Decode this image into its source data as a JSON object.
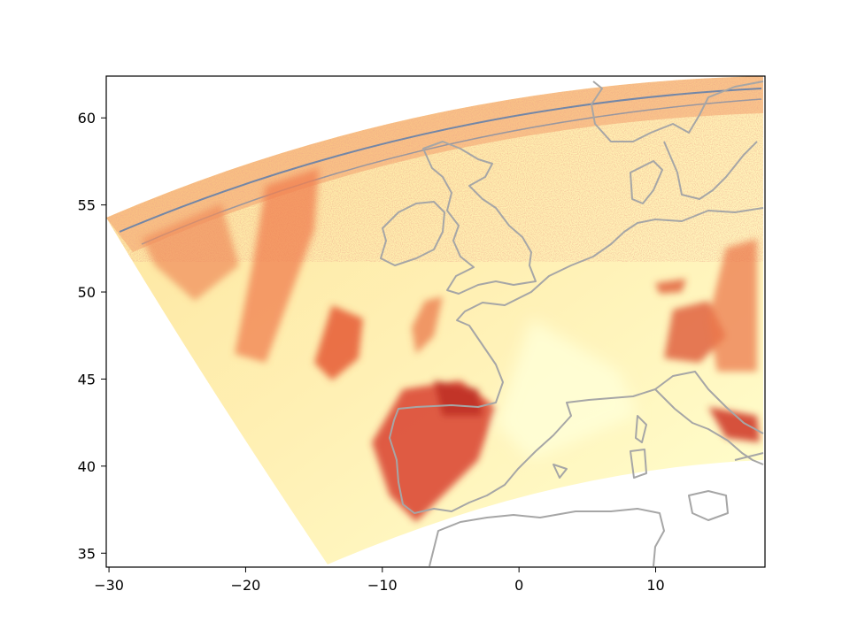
{
  "chart_data": {
    "type": "heatmap",
    "title": "",
    "xlabel": "",
    "ylabel": "",
    "xlim": [
      -30.2,
      18
    ],
    "ylim": [
      34.2,
      62.4
    ],
    "x_ticks": [
      {
        "value": -30,
        "label": "−30"
      },
      {
        "value": -20,
        "label": "−20"
      },
      {
        "value": -10,
        "label": "−10"
      },
      {
        "value": 0,
        "label": "0"
      },
      {
        "value": 10,
        "label": "10"
      }
    ],
    "y_ticks": [
      {
        "value": 35,
        "label": "35"
      },
      {
        "value": 40,
        "label": "40"
      },
      {
        "value": 45,
        "label": "45"
      },
      {
        "value": 50,
        "label": "50"
      },
      {
        "value": 55,
        "label": "55"
      },
      {
        "value": 60,
        "label": "60"
      }
    ],
    "colormap": [
      "#ffffd4",
      "#fff3b0",
      "#fee391",
      "#fdb863",
      "#f4834f",
      "#e34a33",
      "#c0392b",
      "#2b5fa3"
    ],
    "coastline_color": "#a6a6a6",
    "grid": false
  }
}
